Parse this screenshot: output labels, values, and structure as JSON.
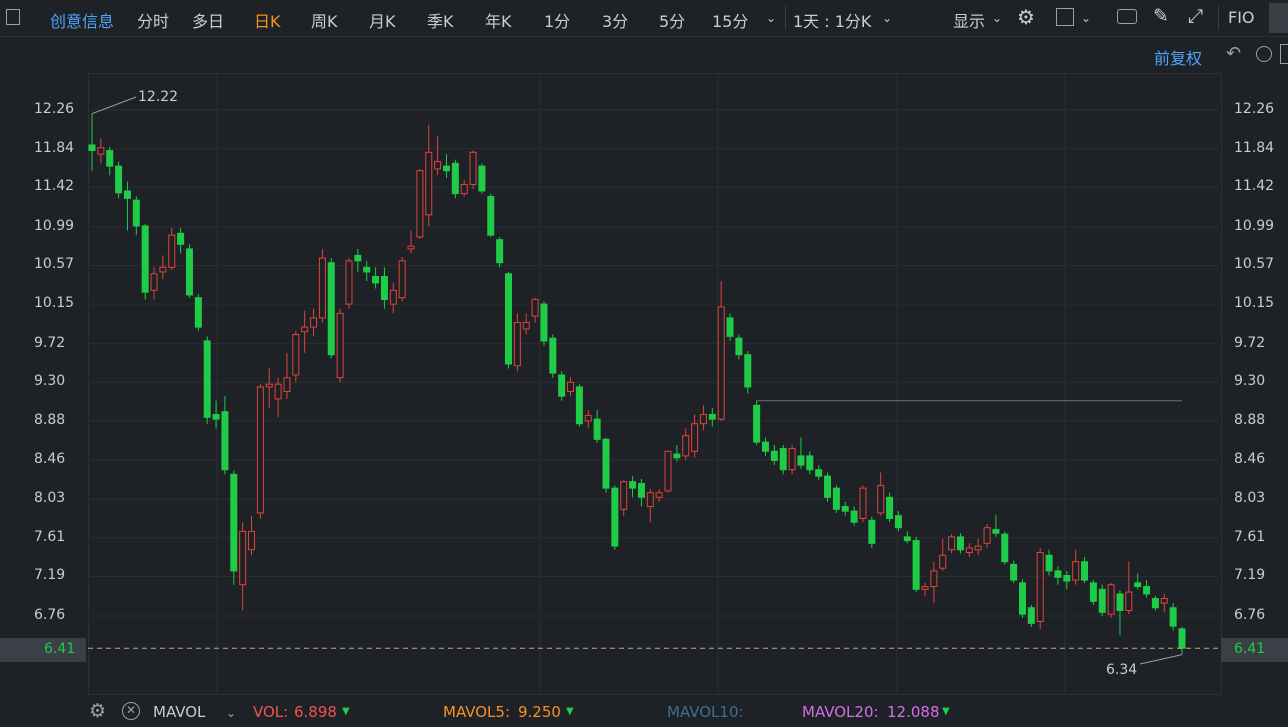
{
  "toolbar": {
    "stock_name": "创意信息",
    "periods": [
      "分时",
      "多日",
      "日K",
      "周K",
      "月K",
      "季K",
      "年K",
      "1分",
      "3分",
      "5分",
      "15分"
    ],
    "active_period": "日K",
    "period_range": "1天 : 1分K",
    "display_label": "显示",
    "f10_label": "FIO"
  },
  "adjust_label": "前复权",
  "colors": {
    "up": "#e0433b",
    "down": "#1fcc48",
    "accent_blue": "#4fa3f7",
    "active": "#f7931e"
  },
  "chart_data": {
    "type": "candlestick",
    "ylim": [
      6.34,
      12.34
    ],
    "y_ticks": [
      "12.26",
      "11.84",
      "11.42",
      "10.99",
      "10.57",
      "10.15",
      "9.72",
      "9.30",
      "8.88",
      "8.46",
      "8.03",
      "7.61",
      "7.19",
      "6.76"
    ],
    "last_price": "6.41",
    "annotations": {
      "high": "12.22",
      "low": "6.34"
    },
    "candles": [
      {
        "o": 11.88,
        "c": 11.82,
        "h": 12.22,
        "l": 11.6
      },
      {
        "o": 11.78,
        "c": 11.85,
        "h": 11.95,
        "l": 11.68
      },
      {
        "o": 11.82,
        "c": 11.65,
        "h": 11.86,
        "l": 11.55
      },
      {
        "o": 11.65,
        "c": 11.36,
        "h": 11.7,
        "l": 11.3
      },
      {
        "o": 11.38,
        "c": 11.3,
        "h": 11.48,
        "l": 10.95
      },
      {
        "o": 11.28,
        "c": 11.0,
        "h": 11.32,
        "l": 10.9
      },
      {
        "o": 11.0,
        "c": 10.28,
        "h": 11.02,
        "l": 10.2
      },
      {
        "o": 10.3,
        "c": 10.48,
        "h": 10.55,
        "l": 10.2
      },
      {
        "o": 10.5,
        "c": 10.55,
        "h": 10.68,
        "l": 10.42
      },
      {
        "o": 10.55,
        "c": 10.9,
        "h": 10.98,
        "l": 10.52
      },
      {
        "o": 10.92,
        "c": 10.8,
        "h": 10.98,
        "l": 10.7
      },
      {
        "o": 10.75,
        "c": 10.25,
        "h": 10.8,
        "l": 10.22
      },
      {
        "o": 10.22,
        "c": 9.9,
        "h": 10.26,
        "l": 9.86
      },
      {
        "o": 9.75,
        "c": 8.92,
        "h": 9.8,
        "l": 8.85
      },
      {
        "o": 8.95,
        "c": 8.9,
        "h": 9.1,
        "l": 8.8
      },
      {
        "o": 8.98,
        "c": 8.35,
        "h": 9.15,
        "l": 8.3
      },
      {
        "o": 8.3,
        "c": 7.25,
        "h": 8.34,
        "l": 7.1
      },
      {
        "o": 7.1,
        "c": 7.68,
        "h": 7.78,
        "l": 6.82
      },
      {
        "o": 7.48,
        "c": 7.68,
        "h": 7.85,
        "l": 7.42
      },
      {
        "o": 7.88,
        "c": 9.25,
        "h": 9.28,
        "l": 7.82
      },
      {
        "o": 9.25,
        "c": 9.28,
        "h": 9.45,
        "l": 9.02
      },
      {
        "o": 9.12,
        "c": 9.28,
        "h": 9.35,
        "l": 8.92
      },
      {
        "o": 9.2,
        "c": 9.35,
        "h": 9.62,
        "l": 9.12
      },
      {
        "o": 9.38,
        "c": 9.82,
        "h": 9.86,
        "l": 9.3
      },
      {
        "o": 9.85,
        "c": 9.9,
        "h": 10.08,
        "l": 9.62
      },
      {
        "o": 9.9,
        "c": 10.0,
        "h": 10.1,
        "l": 9.8
      },
      {
        "o": 10.0,
        "c": 10.65,
        "h": 10.75,
        "l": 9.95
      },
      {
        "o": 10.6,
        "c": 9.6,
        "h": 10.65,
        "l": 9.56
      },
      {
        "o": 9.35,
        "c": 10.05,
        "h": 10.1,
        "l": 9.3
      },
      {
        "o": 10.15,
        "c": 10.62,
        "h": 10.65,
        "l": 10.1
      },
      {
        "o": 10.68,
        "c": 10.62,
        "h": 10.75,
        "l": 10.5
      },
      {
        "o": 10.55,
        "c": 10.5,
        "h": 10.62,
        "l": 10.4
      },
      {
        "o": 10.45,
        "c": 10.38,
        "h": 10.55,
        "l": 10.32
      },
      {
        "o": 10.45,
        "c": 10.2,
        "h": 10.55,
        "l": 10.1
      },
      {
        "o": 10.15,
        "c": 10.3,
        "h": 10.38,
        "l": 10.05
      },
      {
        "o": 10.22,
        "c": 10.62,
        "h": 10.66,
        "l": 10.18
      },
      {
        "o": 10.75,
        "c": 10.78,
        "h": 10.95,
        "l": 10.7
      },
      {
        "o": 10.88,
        "c": 11.6,
        "h": 11.62,
        "l": 10.86
      },
      {
        "o": 11.12,
        "c": 11.8,
        "h": 12.1,
        "l": 11.0
      },
      {
        "o": 11.62,
        "c": 11.7,
        "h": 11.98,
        "l": 11.55
      },
      {
        "o": 11.65,
        "c": 11.6,
        "h": 11.78,
        "l": 11.52
      },
      {
        "o": 11.68,
        "c": 11.35,
        "h": 11.72,
        "l": 11.3
      },
      {
        "o": 11.35,
        "c": 11.45,
        "h": 11.5,
        "l": 11.32
      },
      {
        "o": 11.45,
        "c": 11.8,
        "h": 11.82,
        "l": 11.4
      },
      {
        "o": 11.65,
        "c": 11.38,
        "h": 11.68,
        "l": 11.35
      },
      {
        "o": 11.32,
        "c": 10.9,
        "h": 11.35,
        "l": 10.88
      },
      {
        "o": 10.85,
        "c": 10.6,
        "h": 10.88,
        "l": 10.55
      },
      {
        "o": 10.48,
        "c": 9.5,
        "h": 10.5,
        "l": 9.45
      },
      {
        "o": 9.48,
        "c": 9.95,
        "h": 10.05,
        "l": 9.42
      },
      {
        "o": 9.88,
        "c": 9.95,
        "h": 10.05,
        "l": 9.82
      },
      {
        "o": 10.02,
        "c": 10.2,
        "h": 10.22,
        "l": 9.95
      },
      {
        "o": 10.15,
        "c": 9.75,
        "h": 10.18,
        "l": 9.7
      },
      {
        "o": 9.78,
        "c": 9.4,
        "h": 9.82,
        "l": 9.35
      },
      {
        "o": 9.38,
        "c": 9.15,
        "h": 9.42,
        "l": 9.1
      },
      {
        "o": 9.2,
        "c": 9.3,
        "h": 9.36,
        "l": 9.15
      },
      {
        "o": 9.25,
        "c": 8.85,
        "h": 9.28,
        "l": 8.82
      },
      {
        "o": 8.88,
        "c": 8.94,
        "h": 9.0,
        "l": 8.8
      },
      {
        "o": 8.9,
        "c": 8.68,
        "h": 9.0,
        "l": 8.64
      },
      {
        "o": 8.68,
        "c": 8.15,
        "h": 8.7,
        "l": 8.1
      },
      {
        "o": 8.15,
        "c": 7.52,
        "h": 8.18,
        "l": 7.48
      },
      {
        "o": 7.92,
        "c": 8.22,
        "h": 8.24,
        "l": 7.85
      },
      {
        "o": 8.22,
        "c": 8.15,
        "h": 8.28,
        "l": 8.05
      },
      {
        "o": 8.2,
        "c": 8.05,
        "h": 8.25,
        "l": 7.95
      },
      {
        "o": 7.95,
        "c": 8.1,
        "h": 8.14,
        "l": 7.78
      },
      {
        "o": 8.05,
        "c": 8.1,
        "h": 8.14,
        "l": 8.0
      },
      {
        "o": 8.12,
        "c": 8.55,
        "h": 8.56,
        "l": 8.1
      },
      {
        "o": 8.52,
        "c": 8.48,
        "h": 8.62,
        "l": 8.44
      },
      {
        "o": 8.5,
        "c": 8.72,
        "h": 8.8,
        "l": 8.45
      },
      {
        "o": 8.55,
        "c": 8.85,
        "h": 8.95,
        "l": 8.48
      },
      {
        "o": 8.85,
        "c": 8.95,
        "h": 9.05,
        "l": 8.78
      },
      {
        "o": 8.95,
        "c": 8.9,
        "h": 9.02,
        "l": 8.82
      },
      {
        "o": 8.9,
        "c": 10.12,
        "h": 10.4,
        "l": 8.88
      },
      {
        "o": 10.0,
        "c": 9.8,
        "h": 10.05,
        "l": 9.75
      },
      {
        "o": 9.78,
        "c": 9.6,
        "h": 9.82,
        "l": 9.55
      },
      {
        "o": 9.6,
        "c": 9.25,
        "h": 9.64,
        "l": 9.18
      },
      {
        "o": 9.05,
        "c": 8.65,
        "h": 9.1,
        "l": 8.62
      },
      {
        "o": 8.65,
        "c": 8.55,
        "h": 8.7,
        "l": 8.5
      },
      {
        "o": 8.55,
        "c": 8.45,
        "h": 8.62,
        "l": 8.4
      },
      {
        "o": 8.58,
        "c": 8.35,
        "h": 8.62,
        "l": 8.3
      },
      {
        "o": 8.35,
        "c": 8.58,
        "h": 8.62,
        "l": 8.3
      },
      {
        "o": 8.5,
        "c": 8.4,
        "h": 8.7,
        "l": 8.36
      },
      {
        "o": 8.5,
        "c": 8.35,
        "h": 8.55,
        "l": 8.3
      },
      {
        "o": 8.35,
        "c": 8.28,
        "h": 8.4,
        "l": 8.24
      },
      {
        "o": 8.28,
        "c": 8.05,
        "h": 8.32,
        "l": 8.0
      },
      {
        "o": 8.15,
        "c": 7.92,
        "h": 8.18,
        "l": 7.88
      },
      {
        "o": 7.95,
        "c": 7.9,
        "h": 8.0,
        "l": 7.85
      },
      {
        "o": 7.9,
        "c": 7.78,
        "h": 7.95,
        "l": 7.74
      },
      {
        "o": 7.82,
        "c": 8.15,
        "h": 8.18,
        "l": 7.78
      },
      {
        "o": 7.8,
        "c": 7.55,
        "h": 7.84,
        "l": 7.5
      },
      {
        "o": 7.88,
        "c": 8.18,
        "h": 8.32,
        "l": 7.85
      },
      {
        "o": 8.05,
        "c": 7.82,
        "h": 8.1,
        "l": 7.78
      },
      {
        "o": 7.85,
        "c": 7.72,
        "h": 7.9,
        "l": 7.68
      },
      {
        "o": 7.62,
        "c": 7.58,
        "h": 7.68,
        "l": 7.55
      },
      {
        "o": 7.58,
        "c": 7.05,
        "h": 7.62,
        "l": 7.02
      },
      {
        "o": 7.05,
        "c": 7.08,
        "h": 7.12,
        "l": 6.98
      },
      {
        "o": 7.08,
        "c": 7.25,
        "h": 7.35,
        "l": 6.9
      },
      {
        "o": 7.28,
        "c": 7.42,
        "h": 7.6,
        "l": 7.25
      },
      {
        "o": 7.48,
        "c": 7.62,
        "h": 7.65,
        "l": 7.44
      },
      {
        "o": 7.62,
        "c": 7.48,
        "h": 7.66,
        "l": 7.44
      },
      {
        "o": 7.45,
        "c": 7.5,
        "h": 7.55,
        "l": 7.4
      },
      {
        "o": 7.48,
        "c": 7.52,
        "h": 7.6,
        "l": 7.42
      },
      {
        "o": 7.55,
        "c": 7.72,
        "h": 7.76,
        "l": 7.5
      },
      {
        "o": 7.7,
        "c": 7.66,
        "h": 7.86,
        "l": 7.62
      },
      {
        "o": 7.65,
        "c": 7.35,
        "h": 7.68,
        "l": 7.32
      },
      {
        "o": 7.32,
        "c": 7.15,
        "h": 7.36,
        "l": 7.12
      },
      {
        "o": 7.12,
        "c": 6.78,
        "h": 7.16,
        "l": 6.74
      },
      {
        "o": 6.85,
        "c": 6.68,
        "h": 6.88,
        "l": 6.64
      },
      {
        "o": 6.7,
        "c": 7.45,
        "h": 7.5,
        "l": 6.62
      },
      {
        "o": 7.42,
        "c": 7.25,
        "h": 7.48,
        "l": 7.2
      },
      {
        "o": 7.25,
        "c": 7.18,
        "h": 7.3,
        "l": 7.1
      },
      {
        "o": 7.2,
        "c": 7.14,
        "h": 7.25,
        "l": 7.05
      },
      {
        "o": 7.15,
        "c": 7.35,
        "h": 7.48,
        "l": 7.1
      },
      {
        "o": 7.35,
        "c": 7.15,
        "h": 7.4,
        "l": 7.12
      },
      {
        "o": 7.12,
        "c": 6.92,
        "h": 7.15,
        "l": 6.88
      },
      {
        "o": 7.05,
        "c": 6.8,
        "h": 7.1,
        "l": 6.76
      },
      {
        "o": 6.78,
        "c": 7.1,
        "h": 7.12,
        "l": 6.74
      },
      {
        "o": 7.0,
        "c": 6.82,
        "h": 7.04,
        "l": 6.55
      },
      {
        "o": 6.82,
        "c": 7.02,
        "h": 7.35,
        "l": 6.78
      },
      {
        "o": 7.12,
        "c": 7.08,
        "h": 7.22,
        "l": 7.05
      },
      {
        "o": 7.08,
        "c": 7.0,
        "h": 7.15,
        "l": 6.96
      },
      {
        "o": 6.95,
        "c": 6.85,
        "h": 6.98,
        "l": 6.82
      },
      {
        "o": 6.9,
        "c": 6.95,
        "h": 7.0,
        "l": 6.8
      },
      {
        "o": 6.85,
        "c": 6.65,
        "h": 6.9,
        "l": 6.6
      },
      {
        "o": 6.62,
        "c": 6.41,
        "h": 6.64,
        "l": 6.34
      }
    ],
    "ref_line_price": 9.1
  },
  "indicators": {
    "name": "MAVOL",
    "vol_label": "VOL:",
    "vol_value": "6.898",
    "mavol5_label": "MAVOL5:",
    "mavol5_value": "9.250",
    "mavol10_label": "MAVOL10:",
    "mavol20_label": "MAVOL20:",
    "mavol20_value": "12.088"
  }
}
